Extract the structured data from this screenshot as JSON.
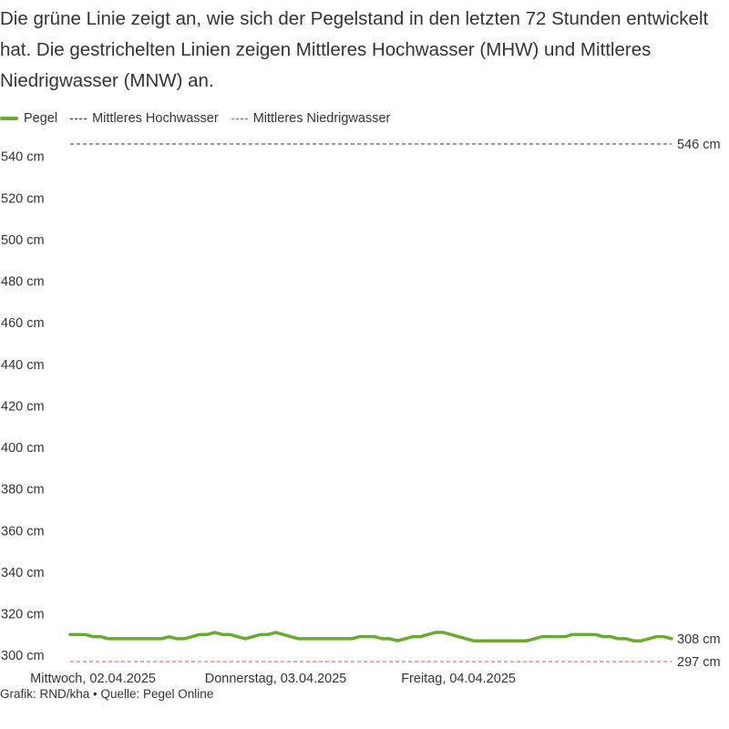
{
  "header": {
    "subtitle": "Die grüne Linie zeigt an, wie sich der Pegelstand in den letzten 72 Stunden entwickelt hat. Die gestrichelten Linien zeigen Mittleres Hochwasser (MHW) und Mittleres Niedrigwasser (MNW) an."
  },
  "legend": [
    {
      "label": "Pegel",
      "style": "solid",
      "color": "#6aaa2e"
    },
    {
      "label": "Mittleres Hochwasser",
      "style": "dashed",
      "color": "#333333"
    },
    {
      "label": "Mittleres Niedrigwasser",
      "style": "dashed",
      "color": "#e05050"
    }
  ],
  "footer": {
    "text": "Grafik: RND/kha • Quelle: Pegel Online"
  },
  "chart_data": {
    "type": "line",
    "x_start": "2025-04-01T21:00",
    "x_step_hours": 1,
    "y_unit": "cm",
    "ylim": [
      297,
      546
    ],
    "y_ticks": [
      300,
      320,
      340,
      360,
      380,
      400,
      420,
      440,
      460,
      480,
      500,
      520,
      540
    ],
    "y_tick_labels": [
      "300 cm",
      "320 cm",
      "340 cm",
      "360 cm",
      "380 cm",
      "400 cm",
      "420 cm",
      "440 cm",
      "460 cm",
      "480 cm",
      "500 cm",
      "520 cm",
      "540 cm"
    ],
    "x_ticks": [
      "2025-04-02",
      "2025-04-03",
      "2025-04-04"
    ],
    "x_tick_labels": [
      "Mittwoch, 02.04.2025",
      "Donnerstag, 03.04.2025",
      "Freitag, 04.04.2025"
    ],
    "grid": false,
    "legend_position": "top-left",
    "series": [
      {
        "name": "Pegel",
        "color": "#6aaa2e",
        "values": [
          310,
          310,
          310,
          309,
          309,
          308,
          308,
          308,
          308,
          308,
          308,
          308,
          308,
          309,
          308,
          308,
          309,
          310,
          310,
          311,
          310,
          310,
          309,
          308,
          309,
          310,
          310,
          311,
          310,
          309,
          308,
          308,
          308,
          308,
          308,
          308,
          308,
          308,
          309,
          309,
          309,
          308,
          308,
          307,
          308,
          309,
          309,
          310,
          311,
          311,
          310,
          309,
          308,
          307,
          307,
          307,
          307,
          307,
          307,
          307,
          307,
          308,
          309,
          309,
          309,
          309,
          310,
          310,
          310,
          310,
          309,
          309,
          308,
          308,
          307,
          307,
          308,
          309,
          309,
          308
        ]
      }
    ],
    "reference_lines": [
      {
        "name": "Mittleres Hochwasser",
        "value": 546,
        "label": "546 cm",
        "color": "#333333",
        "style": "dashed"
      },
      {
        "name": "Mittleres Niedrigwasser",
        "value": 297,
        "label": "297 cm",
        "color": "#e05050",
        "style": "dashed"
      }
    ],
    "last_value_label": "308 cm"
  }
}
